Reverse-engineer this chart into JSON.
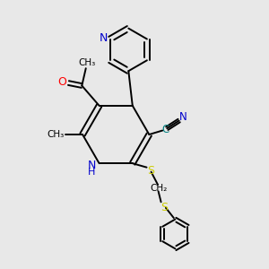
{
  "background_color": "#e8e8e8",
  "bond_color": "#000000",
  "nitrogen_color": "#0000cc",
  "oxygen_color": "#ff0000",
  "sulfur_color": "#cccc00",
  "cyan_color": "#008080",
  "figsize": [
    3.0,
    3.0
  ],
  "dpi": 100,
  "xlim": [
    0,
    10
  ],
  "ylim": [
    0,
    10
  ]
}
